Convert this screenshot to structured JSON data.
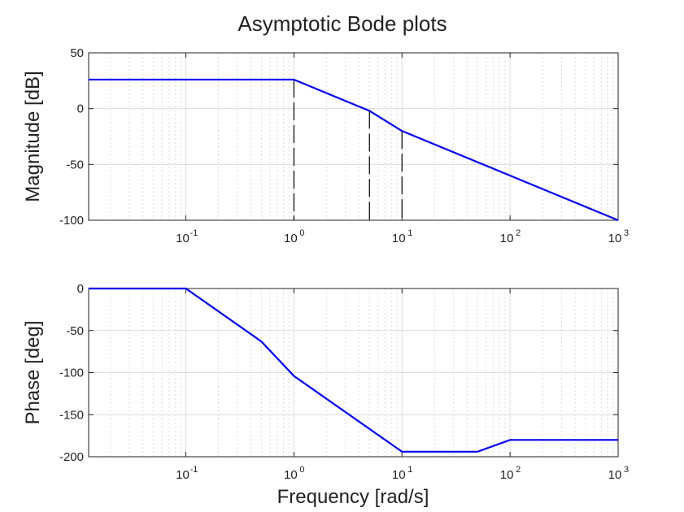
{
  "chart_data": {
    "type": "line",
    "title": "Asymptotic Bode plots",
    "xlabel": "Frequency [rad/s]",
    "xscale": "log",
    "xlim": [
      0.0126,
      1000
    ],
    "xtick_values": [
      0.1,
      1,
      10,
      100,
      1000
    ],
    "xtick_labels": [
      {
        "base": "10",
        "exp": "-1"
      },
      {
        "base": "10",
        "exp": "0"
      },
      {
        "base": "10",
        "exp": "1"
      },
      {
        "base": "10",
        "exp": "2"
      },
      {
        "base": "10",
        "exp": "3"
      }
    ],
    "grid": true,
    "subplots": [
      {
        "name": "magnitude",
        "ylabel": "Magnitude [dB]",
        "ylim": [
          -100,
          50
        ],
        "yticks": [
          50,
          0,
          -50,
          -100
        ],
        "ytick_labels": [
          "50",
          "0",
          "-50",
          "-100"
        ],
        "series": [
          {
            "name": "Magnitude",
            "color": "#0000ee",
            "x": [
              0.0126,
              1,
              5,
              10,
              1000
            ],
            "y": [
              26,
              26,
              -2,
              -20,
              -100
            ]
          }
        ],
        "vertical_markers": [
          {
            "x": 1,
            "y_from": -100,
            "y_to": 26
          },
          {
            "x": 5,
            "y_from": -100,
            "y_to": -2
          },
          {
            "x": 10,
            "y_from": -100,
            "y_to": -20
          }
        ]
      },
      {
        "name": "phase",
        "ylabel": "Phase [deg]",
        "ylim": [
          -200,
          0
        ],
        "yticks": [
          0,
          -50,
          -100,
          -150,
          -200
        ],
        "ytick_labels": [
          "0",
          "-50",
          "-100",
          "-150",
          "-200"
        ],
        "series": [
          {
            "name": "Phase",
            "color": "#0000ee",
            "x": [
              0.0126,
              0.1,
              0.5,
              1,
              10,
              50,
              100,
              1000
            ],
            "y": [
              0,
              0,
              -63,
              -104,
              -194,
              -194,
              -180,
              -180
            ]
          }
        ]
      }
    ]
  }
}
